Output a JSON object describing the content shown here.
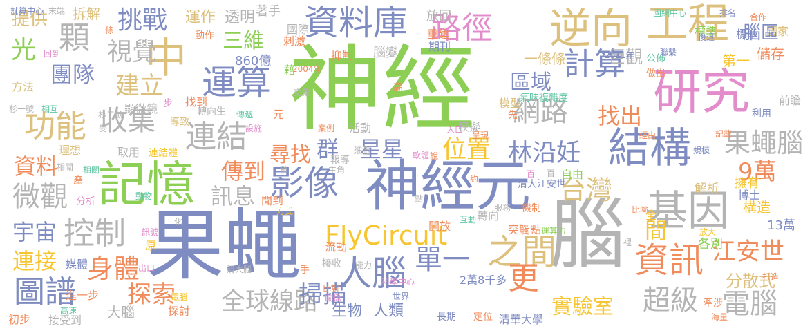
{
  "palette": {
    "green": "#8ccf54",
    "slate": "#7f8cc2",
    "grey": "#b4b4b4",
    "orange": "#f08c5c",
    "sand": "#dcc07c",
    "pink": "#e38ccc",
    "gold": "#f6c530",
    "teal": "#5fc6a3"
  },
  "words": [
    "神經",
    "果蠅",
    "腦",
    "研究",
    "神經元",
    "記憶",
    "中",
    "工程",
    "逆向",
    "資料庫",
    "結構",
    "基因",
    "運算",
    "路徑",
    "之間",
    "資訊",
    "人腦",
    "FlyCircuit",
    "台灣",
    "影像",
    "連結",
    "圖譜",
    "功能",
    "控制",
    "果蠅腦",
    "顆",
    "網路",
    "計算",
    "運作",
    "透明",
    "區域",
    "三維",
    "光",
    "提供",
    "挑戰",
    "視覺",
    "團隊",
    "建立",
    "收集",
    "找出",
    "林沿妊",
    "群",
    "星星",
    "位置",
    "傳到",
    "尋找",
    "資料",
    "訊息",
    "微觀",
    "宇宙",
    "連接",
    "身體",
    "探索",
    "全球線路",
    "掃描",
    "單一",
    "更",
    "實驗室",
    "超級",
    "電腦",
    "江安世",
    "分散式",
    "9萬",
    "博士",
    "擁有",
    "解析",
    "構造",
    "13萬",
    "各別",
    "間",
    "860億",
    "抑制",
    "腦變",
    "一條條",
    "模型",
    "氣味複雜度",
    "巨觀",
    "第一",
    "儲存",
    "標準",
    "國家",
    "腦區",
    "標準",
    "公佈",
    "做出",
    "轉向生",
    "顯微鏡",
    "步",
    "元",
    "導致",
    "理想",
    "取用",
    "連結體",
    "活動",
    "模擬",
    "先",
    "自由",
    "清大江安世",
    "機制",
    "開放",
    "轉向",
    "突觸點",
    "流動",
    "2萬8千多",
    "清華大學",
    "長期",
    "定位",
    "生物",
    "人類",
    "大腦",
    "進一步",
    "媒體",
    "原",
    "分析",
    "產",
    "相關",
    "方法",
    "計算中心",
    "末端",
    "拆解",
    "著手",
    "動作",
    "國際",
    "刺激",
    "期刊",
    "重建",
    "放回",
    "2004年",
    "藉",
    "高",
    "報導",
    "案例",
    "聞到",
    "找到",
    "傳遞",
    "設施",
    "細胞",
    "主角",
    "手",
    "接收",
    "能力",
    "比對",
    "關係",
    "世界",
    "接受到",
    "探討",
    "電腦",
    "初步",
    "高速",
    "出口",
    "清大腦",
    "科學中心",
    "打造",
    "牽涉",
    "海量",
    "後退",
    "聯繫",
    "2011年",
    "前瞻",
    "利用",
    "記載",
    "經由",
    "呈現",
    "入口",
    "服務",
    "互動",
    "比喻",
    "裡",
    "全",
    "運算力",
    "合作",
    "排名",
    "國網中心",
    "條",
    "回到",
    "杉二號",
    "相互",
    "杉一號",
    "交集",
    "受",
    "動物",
    "化",
    "訊號",
    "方式",
    "說",
    "軟體",
    "約",
    "點",
    "百",
    "百",
    "稍",
    "規模",
    "放大",
    "相關"
  ]
}
